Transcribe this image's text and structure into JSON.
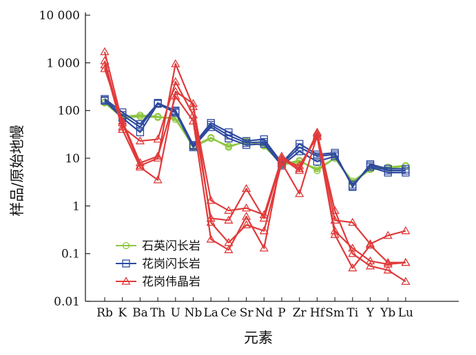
{
  "chart_data": {
    "type": "line",
    "xlabel": "元素",
    "ylabel": "样品/原始地幔",
    "yscale": "log",
    "ylim": [
      0.01,
      10000
    ],
    "categories": [
      "Rb",
      "K",
      "Ba",
      "Th",
      "U",
      "Nb",
      "La",
      "Ce",
      "Sr",
      "Nd",
      "P",
      "Zr",
      "Hf",
      "Sm",
      "Ti",
      "Y",
      "Yb",
      "Lu"
    ],
    "yticks": [
      {
        "value": 10000,
        "label": "10 000"
      },
      {
        "value": 1000,
        "label": "1 000"
      },
      {
        "value": 100,
        "label": "100"
      },
      {
        "value": 10,
        "label": "10"
      },
      {
        "value": 1,
        "label": "1"
      },
      {
        "value": 0.1,
        "label": "0.1"
      },
      {
        "value": 0.01,
        "label": "0.01"
      }
    ],
    "legend": {
      "placement": "bottom-left",
      "items": [
        {
          "name": "石英闪长岩",
          "color": "#8dc63f",
          "marker": "circle"
        },
        {
          "name": "花岗闪长岩",
          "color": "#2e4a9e",
          "marker": "square"
        },
        {
          "name": "花岗伟晶岩",
          "color": "#e03a3a",
          "marker": "triangle"
        }
      ]
    },
    "series": [
      {
        "group": "石英闪长岩",
        "color": "#8dc63f",
        "marker": "circle",
        "stroke_color": "#8dc63f",
        "values": [
          150,
          75,
          80,
          75,
          65,
          18,
          27,
          17,
          23,
          18,
          7.5,
          9,
          5.5,
          10,
          3.3,
          6,
          6.5,
          7
        ]
      },
      {
        "group": "石英闪长岩",
        "color": "#8dc63f",
        "marker": "circle",
        "stroke_color": "#8dc63f",
        "values": [
          145,
          70,
          75,
          72,
          70,
          17,
          26,
          18,
          22,
          19,
          7.2,
          8.5,
          6,
          10,
          3.1,
          5.8,
          6.2,
          6.8
        ]
      },
      {
        "group": "花岗闪长岩",
        "color": "#2e4a9e",
        "marker": "square",
        "stroke_color": "#2e4a9e",
        "values": [
          175,
          92,
          52,
          142,
          100,
          19,
          55,
          35,
          23,
          25,
          8,
          20,
          12,
          13,
          2.5,
          7.5,
          6,
          6
        ]
      },
      {
        "group": "花岗闪长岩",
        "color": "#2e4a9e",
        "marker": "square",
        "stroke_color": "#2e4a9e",
        "values": [
          165,
          80,
          45,
          145,
          95,
          18,
          50,
          30,
          21,
          22,
          7.5,
          17,
          11,
          12,
          2.6,
          7,
          5.5,
          5.5
        ]
      },
      {
        "group": "花岗闪长岩",
        "color": "#2e4a9e",
        "marker": "square",
        "stroke_color": "#2e4a9e",
        "values": [
          160,
          70,
          35,
          138,
          90,
          17,
          45,
          26,
          19,
          20,
          7,
          14,
          8.5,
          11,
          2.8,
          6.5,
          5,
          5
        ]
      },
      {
        "group": "花岗伟晶岩",
        "color": "#e03a3a",
        "marker": "triangle",
        "stroke_color": "#e03a3a",
        "values": [
          1700,
          55,
          7,
          10,
          950,
          120,
          1.3,
          0.8,
          0.9,
          0.65,
          10,
          5.5,
          35,
          0.5,
          0.45,
          0.16,
          0.24,
          0.3
        ]
      },
      {
        "group": "花岗伟晶岩",
        "color": "#e03a3a",
        "marker": "triangle",
        "stroke_color": "#e03a3a",
        "values": [
          1100,
          45,
          23,
          25,
          400,
          80,
          0.55,
          0.5,
          2.3,
          0.55,
          9,
          7,
          28,
          0.3,
          0.13,
          0.07,
          0.06,
          0.065
        ]
      },
      {
        "group": "花岗伟晶岩",
        "color": "#e03a3a",
        "marker": "triangle",
        "stroke_color": "#e03a3a",
        "values": [
          900,
          40,
          6.5,
          3.5,
          250,
          140,
          0.45,
          0.17,
          0.4,
          0.3,
          8,
          1.8,
          30,
          0.25,
          0.05,
          0.15,
          0.065,
          0.065
        ]
      },
      {
        "group": "花岗伟晶岩",
        "color": "#e03a3a",
        "marker": "triangle",
        "stroke_color": "#e03a3a",
        "values": [
          750,
          60,
          8,
          11,
          200,
          60,
          0.2,
          0.12,
          0.6,
          0.13,
          11,
          6,
          33,
          0.8,
          0.1,
          0.055,
          0.045,
          0.026
        ]
      }
    ]
  }
}
